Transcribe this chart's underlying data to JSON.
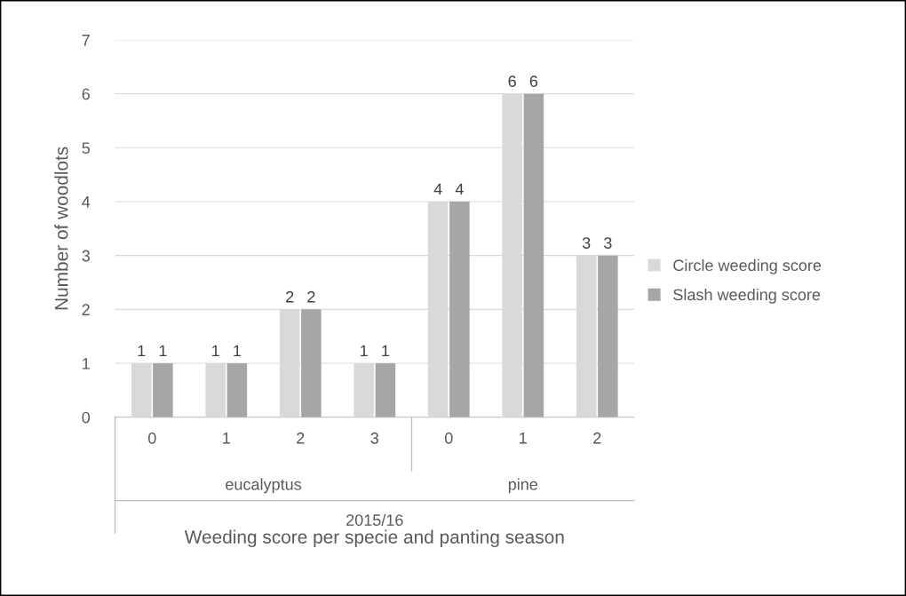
{
  "chart_data": {
    "type": "bar",
    "xlabel": "Weeding score per specie and panting season",
    "ylabel": "Number of woodlots",
    "categories": [
      "0",
      "1",
      "2",
      "3",
      "0",
      "1",
      "2"
    ],
    "series": [
      {
        "name": "Circle weeding score",
        "color": "#d9d9d9",
        "values": [
          1,
          1,
          2,
          1,
          4,
          6,
          3
        ]
      },
      {
        "name": "Slash weeding score",
        "color": "#a6a6a6",
        "values": [
          1,
          1,
          2,
          1,
          4,
          6,
          3
        ]
      }
    ],
    "annotations": [
      "eucalyptus",
      "pine",
      "2015/16"
    ],
    "ylim": [
      0,
      7
    ],
    "yticks": [
      0,
      1,
      2,
      3,
      4,
      5,
      6,
      7
    ],
    "grid": "y",
    "legend": "right",
    "data_labels": true
  }
}
